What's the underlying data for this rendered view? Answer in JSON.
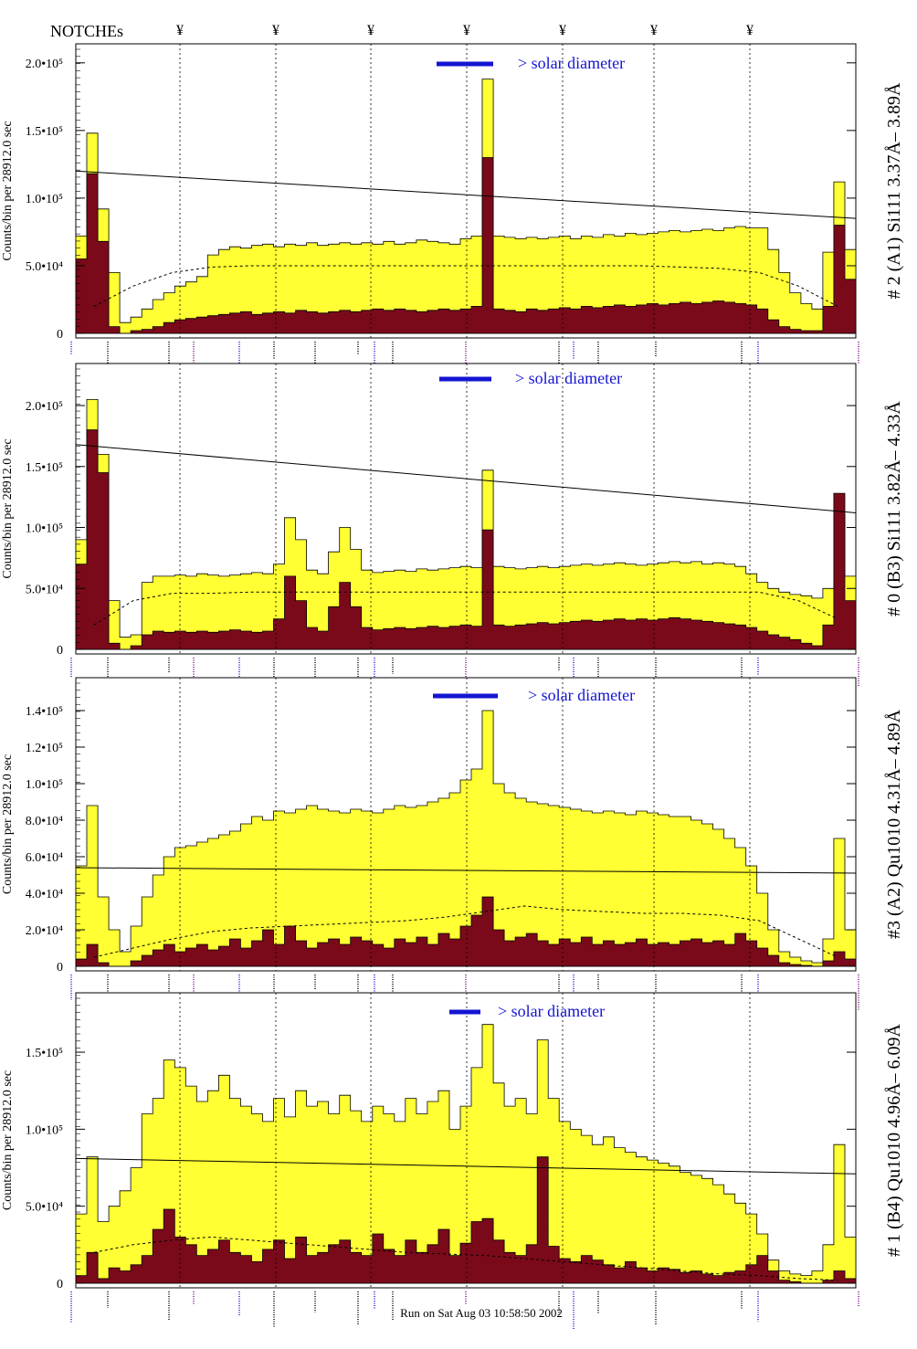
{
  "header": {
    "notches_label": "NOTCHEs",
    "notch_symbol": "¥"
  },
  "footer": {
    "run_text": "Run on Sat Aug 03 10:58:50 2002"
  },
  "colors": {
    "total_fill": "#ffff33",
    "core_fill": "#7a0a1a",
    "solar_bar": "#1414d2",
    "solar_text": "#1414d2",
    "line_blue": "#1a1ad0",
    "line_purple": "#7a0a8a"
  },
  "chart_data": [
    {
      "type": "histogram",
      "ylabel": "Counts/bin per 28912.0 sec",
      "right_label": "# 2 (A1) Si111 3.37Å– 3.89Å",
      "solar_label": "> solar diameter",
      "ylim": [
        0,
        210000
      ],
      "y_ticks": [
        {
          "v": 0,
          "label": "0"
        },
        {
          "v": 50000,
          "label": "5.0•10⁴"
        },
        {
          "v": 100000,
          "label": "1.0•10⁵"
        },
        {
          "v": 150000,
          "label": "1.5•10⁵"
        },
        {
          "v": 200000,
          "label": "2.0•10⁵"
        }
      ],
      "series": [
        {
          "role": "total",
          "values": [
            72000,
            148000,
            92000,
            45000,
            8000,
            12000,
            18000,
            25000,
            30000,
            35000,
            38000,
            42000,
            58000,
            62000,
            64000,
            63000,
            65000,
            66000,
            64000,
            66000,
            65000,
            67000,
            65000,
            66000,
            67000,
            66000,
            67000,
            66000,
            68000,
            66000,
            67000,
            69000,
            68000,
            67000,
            66000,
            70000,
            72000,
            188000,
            72000,
            71000,
            70000,
            71000,
            70000,
            71000,
            72000,
            70000,
            72000,
            71000,
            73000,
            72000,
            74000,
            73000,
            74000,
            75000,
            76000,
            75000,
            76000,
            77000,
            76000,
            78000,
            79000,
            78000,
            78000,
            62000,
            45000,
            30000,
            22000,
            18000,
            60000,
            112000,
            62000
          ],
          "fill": "#ffff33"
        },
        {
          "role": "core",
          "values": [
            55000,
            118000,
            68000,
            5000,
            0,
            2000,
            3000,
            5000,
            8000,
            10000,
            11000,
            12000,
            13000,
            14000,
            15000,
            16000,
            14000,
            15000,
            16000,
            15000,
            17000,
            16000,
            15000,
            16000,
            17000,
            16000,
            17000,
            18000,
            17000,
            18000,
            17000,
            16000,
            17000,
            18000,
            17000,
            18000,
            20000,
            130000,
            18000,
            17000,
            16000,
            18000,
            17000,
            18000,
            19000,
            18000,
            20000,
            19000,
            20000,
            21000,
            20000,
            21000,
            22000,
            21000,
            22000,
            23000,
            22000,
            23000,
            24000,
            23000,
            22000,
            21000,
            18000,
            10000,
            5000,
            3000,
            2000,
            2000,
            20000,
            80000,
            40000
          ],
          "fill": "#7a0a1a"
        }
      ],
      "trend_line": {
        "from": 120000,
        "to": 85000
      },
      "dashed_curve": [
        20000,
        35000,
        45000,
        49000,
        50000,
        50000,
        50000,
        50000,
        50000,
        50000,
        50000,
        50000,
        50000,
        50000,
        50000,
        49000,
        48000,
        45000,
        35000,
        20000
      ]
    },
    {
      "type": "histogram",
      "ylabel": "Counts/bin per 28912.0 sec",
      "right_label": "# 0 (B3) Si111 3.82Å– 4.33Å",
      "solar_label": "> solar diameter",
      "ylim": [
        0,
        230000
      ],
      "y_ticks": [
        {
          "v": 0,
          "label": "0"
        },
        {
          "v": 50000,
          "label": "5.0•10⁴"
        },
        {
          "v": 100000,
          "label": "1.0•10⁵"
        },
        {
          "v": 150000,
          "label": "1.5•10⁵"
        },
        {
          "v": 200000,
          "label": "2.0•10⁵"
        }
      ],
      "series": [
        {
          "role": "total",
          "values": [
            90000,
            205000,
            160000,
            40000,
            10000,
            12000,
            55000,
            60000,
            60000,
            61000,
            60000,
            62000,
            61000,
            60000,
            61000,
            62000,
            63000,
            62000,
            70000,
            108000,
            90000,
            65000,
            62000,
            80000,
            100000,
            82000,
            65000,
            63000,
            64000,
            65000,
            64000,
            66000,
            65000,
            66000,
            67000,
            68000,
            67000,
            147000,
            68000,
            67000,
            66000,
            67000,
            68000,
            67000,
            68000,
            69000,
            70000,
            69000,
            70000,
            71000,
            70000,
            69000,
            70000,
            71000,
            72000,
            71000,
            72000,
            70000,
            71000,
            70000,
            68000,
            62000,
            55000,
            50000,
            47000,
            45000,
            44000,
            42000,
            50000,
            110000,
            60000
          ],
          "fill": "#ffff33"
        },
        {
          "role": "core",
          "values": [
            70000,
            180000,
            145000,
            5000,
            0,
            3000,
            12000,
            15000,
            14000,
            15000,
            14000,
            15000,
            14000,
            15000,
            16000,
            15000,
            14000,
            15000,
            25000,
            60000,
            40000,
            18000,
            15000,
            35000,
            55000,
            35000,
            18000,
            16000,
            17000,
            18000,
            17000,
            18000,
            19000,
            18000,
            19000,
            20000,
            19000,
            98000,
            20000,
            19000,
            20000,
            21000,
            22000,
            21000,
            22000,
            23000,
            24000,
            23000,
            24000,
            25000,
            24000,
            25000,
            24000,
            25000,
            26000,
            25000,
            24000,
            23000,
            22000,
            21000,
            20000,
            18000,
            15000,
            12000,
            10000,
            8000,
            5000,
            3000,
            20000,
            128000,
            40000
          ],
          "fill": "#7a0a1a"
        }
      ],
      "trend_line": {
        "from": 168000,
        "to": 112000
      },
      "dashed_curve": [
        20000,
        40000,
        46000,
        46000,
        47000,
        47000,
        47000,
        47000,
        47000,
        47000,
        47000,
        47000,
        47000,
        47000,
        47000,
        47000,
        47000,
        47000,
        40000,
        25000
      ]
    },
    {
      "type": "histogram",
      "ylabel": "Counts/bin per 28912.0 sec",
      "right_label": "#3 (A2) Qu1010 4.31Å– 4.89Å",
      "solar_label": "> solar diameter",
      "ylim": [
        0,
        155000
      ],
      "y_ticks": [
        {
          "v": 0,
          "label": "0"
        },
        {
          "v": 20000,
          "label": "2.0•10⁴"
        },
        {
          "v": 40000,
          "label": "4.0•10⁴"
        },
        {
          "v": 60000,
          "label": "6.0•10⁴"
        },
        {
          "v": 80000,
          "label": "8.0•10⁴"
        },
        {
          "v": 100000,
          "label": "1.0•10⁵"
        },
        {
          "v": 120000,
          "label": "1.2•10⁵"
        },
        {
          "v": 140000,
          "label": "1.4•10⁵"
        }
      ],
      "series": [
        {
          "role": "total",
          "values": [
            55000,
            88000,
            38000,
            20000,
            8000,
            22000,
            38000,
            50000,
            60000,
            65000,
            66000,
            68000,
            70000,
            72000,
            74000,
            78000,
            82000,
            80000,
            85000,
            84000,
            86000,
            88000,
            86000,
            85000,
            84000,
            86000,
            85000,
            84000,
            86000,
            88000,
            87000,
            88000,
            90000,
            92000,
            95000,
            102000,
            108000,
            140000,
            100000,
            95000,
            92000,
            90000,
            89000,
            88000,
            87000,
            86000,
            85000,
            84000,
            85000,
            84000,
            83000,
            85000,
            84000,
            83000,
            82000,
            82000,
            80000,
            78000,
            75000,
            70000,
            65000,
            55000,
            40000,
            20000,
            8000,
            5000,
            3000,
            2000,
            15000,
            70000,
            20000
          ],
          "fill": "#ffff33"
        },
        {
          "role": "core",
          "values": [
            4000,
            12000,
            2000,
            0,
            0,
            3000,
            6000,
            9000,
            12000,
            8000,
            10000,
            12000,
            9000,
            11000,
            15000,
            10000,
            14000,
            20000,
            12000,
            22000,
            14000,
            10000,
            13000,
            15000,
            12000,
            16000,
            14000,
            12000,
            10000,
            15000,
            13000,
            16000,
            12000,
            18000,
            15000,
            22000,
            28000,
            38000,
            20000,
            14000,
            16000,
            18000,
            14000,
            12000,
            15000,
            13000,
            16000,
            12000,
            14000,
            12000,
            13000,
            15000,
            12000,
            13000,
            12000,
            14000,
            15000,
            13000,
            14000,
            12000,
            18000,
            14000,
            10000,
            6000,
            2000,
            1000,
            500,
            0,
            3000,
            8000,
            4000
          ],
          "fill": "#7a0a1a"
        }
      ],
      "trend_line": {
        "from": 54000,
        "to": 51000
      },
      "dashed_curve": [
        5000,
        10000,
        15000,
        19000,
        21000,
        22000,
        23000,
        24000,
        25000,
        27000,
        30000,
        33000,
        31000,
        30000,
        29000,
        29000,
        28000,
        25000,
        15000,
        5000
      ]
    },
    {
      "type": "histogram",
      "ylabel": "Counts/bin per 28912.0 sec",
      "right_label": "# 1 (B4) Qu1010 4.96Å– 6.09Å",
      "solar_label": "> solar diameter",
      "ylim": [
        0,
        185000
      ],
      "y_ticks": [
        {
          "v": 0,
          "label": "0"
        },
        {
          "v": 50000,
          "label": "5.0•10⁴"
        },
        {
          "v": 100000,
          "label": "1.0•10⁵"
        },
        {
          "v": 150000,
          "label": "1.5•10⁵"
        }
      ],
      "series": [
        {
          "role": "total",
          "values": [
            45000,
            82000,
            40000,
            50000,
            60000,
            75000,
            110000,
            120000,
            145000,
            140000,
            128000,
            118000,
            125000,
            135000,
            120000,
            115000,
            110000,
            105000,
            120000,
            108000,
            125000,
            115000,
            118000,
            110000,
            122000,
            112000,
            105000,
            115000,
            110000,
            105000,
            120000,
            110000,
            118000,
            125000,
            100000,
            115000,
            140000,
            168000,
            130000,
            115000,
            120000,
            110000,
            158000,
            120000,
            105000,
            100000,
            96000,
            90000,
            95000,
            88000,
            85000,
            82000,
            80000,
            78000,
            76000,
            72000,
            70000,
            68000,
            64000,
            58000,
            52000,
            45000,
            32000,
            15000,
            8000,
            6000,
            5000,
            8000,
            25000,
            90000,
            30000
          ],
          "fill": "#ffff33"
        },
        {
          "role": "core",
          "values": [
            5000,
            20000,
            3000,
            10000,
            8000,
            12000,
            18000,
            35000,
            48000,
            30000,
            25000,
            18000,
            22000,
            28000,
            20000,
            18000,
            14000,
            22000,
            28000,
            16000,
            30000,
            18000,
            20000,
            25000,
            28000,
            20000,
            18000,
            32000,
            22000,
            18000,
            28000,
            20000,
            25000,
            35000,
            18000,
            26000,
            40000,
            42000,
            28000,
            20000,
            18000,
            25000,
            82000,
            24000,
            16000,
            14000,
            18000,
            15000,
            12000,
            10000,
            14000,
            10000,
            8000,
            10000,
            9000,
            7000,
            8000,
            6000,
            5000,
            7000,
            8000,
            12000,
            18000,
            8000,
            2000,
            1000,
            0,
            0,
            2000,
            8000,
            3000
          ],
          "fill": "#7a0a1a"
        }
      ],
      "trend_line": {
        "from": 81000,
        "to": 71000
      },
      "dashed_curve": [
        20000,
        25000,
        28000,
        30000,
        28000,
        26000,
        24000,
        22000,
        20000,
        19000,
        18000,
        16000,
        14000,
        12000,
        10000,
        8000,
        6000,
        5000,
        3000,
        2000
      ]
    }
  ]
}
